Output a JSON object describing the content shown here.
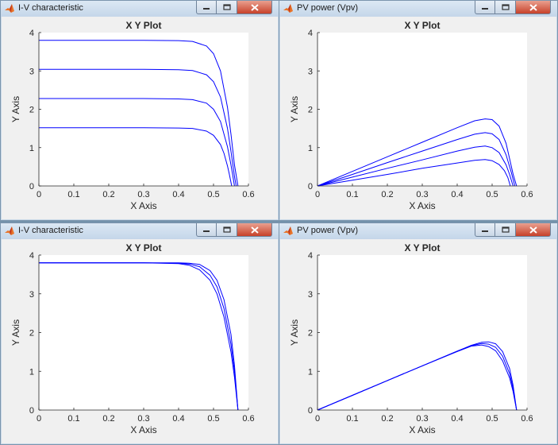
{
  "colors": {
    "line": "#0000ff",
    "axes_bg": "#ffffff",
    "figure_bg": "#f0f0f0",
    "titlebar": "#c4d6e9",
    "close_btn": "#c7412a"
  },
  "icons": {
    "app": "matlab-logo-icon",
    "minimize": "minimize-icon",
    "maximize": "maximize-icon",
    "close": "close-icon"
  },
  "windows": [
    {
      "title": "I-V characteristic",
      "chart_data": {
        "type": "line",
        "title": "X Y Plot",
        "xlabel": "X Axis",
        "ylabel": "Y Axis",
        "xlim": [
          0,
          0.6
        ],
        "ylim": [
          0,
          4
        ],
        "xticks": [
          "0",
          "0.1",
          "0.2",
          "0.3",
          "0.4",
          "0.5",
          "0.6"
        ],
        "yticks": [
          "0",
          "1",
          "2",
          "3",
          "4"
        ],
        "grid": false,
        "series": [
          {
            "x": [
              0,
              0.1,
              0.2,
              0.3,
              0.4,
              0.44,
              0.48,
              0.5,
              0.52,
              0.54,
              0.55,
              0.56,
              0.57
            ],
            "values": [
              3.8,
              3.8,
              3.8,
              3.8,
              3.79,
              3.77,
              3.65,
              3.45,
              3.0,
              2.05,
              1.35,
              0.55,
              0
            ]
          },
          {
            "x": [
              0,
              0.1,
              0.2,
              0.3,
              0.4,
              0.44,
              0.48,
              0.5,
              0.52,
              0.54,
              0.55,
              0.56,
              0.565
            ],
            "values": [
              3.04,
              3.04,
              3.04,
              3.04,
              3.03,
              3.01,
              2.9,
              2.72,
              2.32,
              1.5,
              0.9,
              0.25,
              0
            ]
          },
          {
            "x": [
              0,
              0.1,
              0.2,
              0.3,
              0.4,
              0.44,
              0.48,
              0.5,
              0.52,
              0.54,
              0.55,
              0.555,
              0.56
            ],
            "values": [
              2.28,
              2.28,
              2.28,
              2.28,
              2.27,
              2.25,
              2.16,
              2.0,
              1.68,
              1.02,
              0.55,
              0.28,
              0
            ]
          },
          {
            "x": [
              0,
              0.1,
              0.2,
              0.3,
              0.4,
              0.44,
              0.48,
              0.5,
              0.52,
              0.53,
              0.54,
              0.545,
              0.552
            ],
            "values": [
              1.52,
              1.52,
              1.52,
              1.52,
              1.51,
              1.5,
              1.43,
              1.32,
              1.08,
              0.85,
              0.52,
              0.32,
              0
            ]
          }
        ]
      }
    },
    {
      "title": "PV power (Vpv)",
      "chart_data": {
        "type": "line",
        "title": "X Y Plot",
        "xlabel": "X Axis",
        "ylabel": "Y Axis",
        "xlim": [
          0,
          0.6
        ],
        "ylim": [
          0,
          4
        ],
        "xticks": [
          "0",
          "0.1",
          "0.2",
          "0.3",
          "0.4",
          "0.5",
          "0.6"
        ],
        "yticks": [
          "0",
          "1",
          "2",
          "3",
          "4"
        ],
        "grid": false,
        "series": [
          {
            "x": [
              0,
              0.1,
              0.2,
              0.3,
              0.4,
              0.45,
              0.48,
              0.5,
              0.52,
              0.54,
              0.56,
              0.57
            ],
            "values": [
              0,
              0.38,
              0.76,
              1.14,
              1.52,
              1.7,
              1.75,
              1.73,
              1.56,
              1.11,
              0.31,
              0
            ]
          },
          {
            "x": [
              0,
              0.1,
              0.2,
              0.3,
              0.4,
              0.45,
              0.48,
              0.5,
              0.52,
              0.54,
              0.555,
              0.565
            ],
            "values": [
              0,
              0.3,
              0.61,
              0.91,
              1.21,
              1.35,
              1.39,
              1.36,
              1.21,
              0.81,
              0.35,
              0
            ]
          },
          {
            "x": [
              0,
              0.1,
              0.2,
              0.3,
              0.4,
              0.45,
              0.48,
              0.5,
              0.52,
              0.54,
              0.55,
              0.56
            ],
            "values": [
              0,
              0.23,
              0.46,
              0.68,
              0.91,
              1.01,
              1.04,
              1.0,
              0.87,
              0.55,
              0.3,
              0
            ]
          },
          {
            "x": [
              0,
              0.1,
              0.2,
              0.3,
              0.4,
              0.45,
              0.48,
              0.5,
              0.52,
              0.535,
              0.545,
              0.552
            ],
            "values": [
              0,
              0.15,
              0.3,
              0.46,
              0.6,
              0.67,
              0.69,
              0.66,
              0.56,
              0.4,
              0.22,
              0
            ]
          }
        ]
      }
    },
    {
      "title": "I-V characteristic",
      "chart_data": {
        "type": "line",
        "title": "X Y Plot",
        "xlabel": "X Axis",
        "ylabel": "Y Axis",
        "xlim": [
          0,
          0.6
        ],
        "ylim": [
          0,
          4
        ],
        "xticks": [
          "0",
          "0.1",
          "0.2",
          "0.3",
          "0.4",
          "0.5",
          "0.6"
        ],
        "yticks": [
          "0",
          "1",
          "2",
          "3",
          "4"
        ],
        "grid": false,
        "series": [
          {
            "x": [
              0,
              0.1,
              0.2,
              0.3,
              0.4,
              0.43,
              0.46,
              0.49,
              0.51,
              0.53,
              0.55,
              0.56,
              0.57
            ],
            "values": [
              3.8,
              3.8,
              3.8,
              3.8,
              3.78,
              3.74,
              3.62,
              3.35,
              3.0,
              2.4,
              1.5,
              0.85,
              0
            ]
          },
          {
            "x": [
              0,
              0.1,
              0.2,
              0.3,
              0.4,
              0.43,
              0.46,
              0.49,
              0.51,
              0.53,
              0.55,
              0.56,
              0.57
            ],
            "values": [
              3.8,
              3.8,
              3.8,
              3.8,
              3.79,
              3.77,
              3.7,
              3.48,
              3.18,
              2.62,
              1.7,
              1.0,
              0
            ]
          },
          {
            "x": [
              0,
              0.1,
              0.2,
              0.3,
              0.4,
              0.43,
              0.46,
              0.49,
              0.51,
              0.53,
              0.55,
              0.56,
              0.57
            ],
            "values": [
              3.8,
              3.8,
              3.8,
              3.8,
              3.8,
              3.79,
              3.76,
              3.6,
              3.35,
              2.85,
              1.95,
              1.15,
              0
            ]
          }
        ]
      }
    },
    {
      "title": "PV power (Vpv)",
      "chart_data": {
        "type": "line",
        "title": "X Y Plot",
        "xlabel": "X Axis",
        "ylabel": "Y Axis",
        "xlim": [
          0,
          0.6
        ],
        "ylim": [
          0,
          4
        ],
        "xticks": [
          "0",
          "0.1",
          "0.2",
          "0.3",
          "0.4",
          "0.5",
          "0.6"
        ],
        "yticks": [
          "0",
          "1",
          "2",
          "3",
          "4"
        ],
        "grid": false,
        "series": [
          {
            "x": [
              0,
              0.1,
              0.2,
              0.3,
              0.4,
              0.44,
              0.47,
              0.49,
              0.51,
              0.53,
              0.55,
              0.56,
              0.57
            ],
            "values": [
              0,
              0.38,
              0.76,
              1.14,
              1.51,
              1.65,
              1.68,
              1.64,
              1.53,
              1.27,
              0.83,
              0.48,
              0
            ]
          },
          {
            "x": [
              0,
              0.1,
              0.2,
              0.3,
              0.4,
              0.44,
              0.47,
              0.49,
              0.51,
              0.53,
              0.55,
              0.56,
              0.57
            ],
            "values": [
              0,
              0.38,
              0.76,
              1.14,
              1.52,
              1.66,
              1.72,
              1.7,
              1.62,
              1.39,
              0.94,
              0.56,
              0
            ]
          },
          {
            "x": [
              0,
              0.1,
              0.2,
              0.3,
              0.4,
              0.44,
              0.47,
              0.49,
              0.51,
              0.53,
              0.55,
              0.56,
              0.57
            ],
            "values": [
              0,
              0.38,
              0.76,
              1.14,
              1.52,
              1.67,
              1.75,
              1.76,
              1.71,
              1.51,
              1.07,
              0.64,
              0
            ]
          }
        ]
      }
    }
  ]
}
